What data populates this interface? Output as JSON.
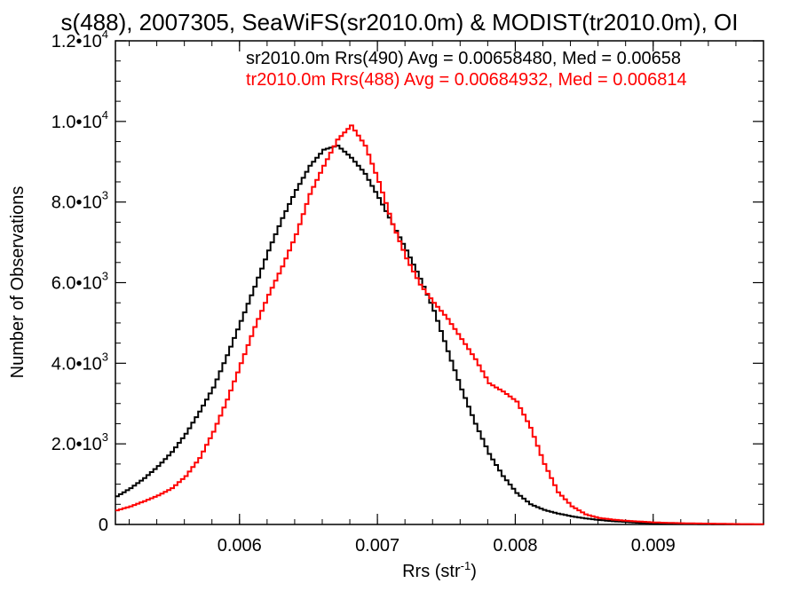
{
  "chart_data": {
    "type": "line",
    "title": "s(488), 2007305, SeaWiFS(sr2010.0m) & MODIST(tr2010.0m), OI",
    "xlabel": "Rrs (str",
    "xlabel_sup": "-1",
    "xlabel_close": ")",
    "ylabel": "Number of Observations",
    "xlim": [
      0.0051,
      0.0098
    ],
    "ylim": [
      0,
      12000
    ],
    "x_ticks": [
      {
        "value": 0.006,
        "label": "0.006"
      },
      {
        "value": 0.007,
        "label": "0.007"
      },
      {
        "value": 0.008,
        "label": "0.008"
      },
      {
        "value": 0.009,
        "label": "0.009"
      }
    ],
    "y_ticks": [
      {
        "value": 0,
        "mant": "0",
        "exp": ""
      },
      {
        "value": 2000,
        "mant": "2.0•10",
        "exp": "3"
      },
      {
        "value": 4000,
        "mant": "4.0•10",
        "exp": "3"
      },
      {
        "value": 6000,
        "mant": "6.0•10",
        "exp": "3"
      },
      {
        "value": 8000,
        "mant": "8.0•10",
        "exp": "3"
      },
      {
        "value": 10000,
        "mant": "1.0•10",
        "exp": "4"
      },
      {
        "value": 12000,
        "mant": "1.2•10",
        "exp": "4"
      }
    ],
    "legend_placement": "top-right",
    "series": [
      {
        "name": "sr2010.0m Rrs(490) Avg = 0.00658480, Med = 0.00658",
        "color": "#000000",
        "x": [
          0.0051,
          0.0052,
          0.0053,
          0.0054,
          0.0055,
          0.0056,
          0.0057,
          0.0058,
          0.0059,
          0.006,
          0.0061,
          0.0062,
          0.0063,
          0.0064,
          0.0065,
          0.0066,
          0.0067,
          0.0068,
          0.0069,
          0.007,
          0.0071,
          0.0072,
          0.0073,
          0.0074,
          0.0075,
          0.0076,
          0.0077,
          0.0078,
          0.0079,
          0.008,
          0.0081,
          0.0082,
          0.0083,
          0.0084,
          0.0085,
          0.0086,
          0.0087,
          0.0088,
          0.0089,
          0.009,
          0.0091,
          0.0092,
          0.0093,
          0.0094,
          0.0095,
          0.0096,
          0.0097,
          0.0098
        ],
        "y": [
          700,
          900,
          1150,
          1450,
          1800,
          2250,
          2800,
          3400,
          4200,
          5050,
          5900,
          6800,
          7600,
          8300,
          8900,
          9300,
          9400,
          9100,
          8700,
          8100,
          7450,
          6800,
          6100,
          5300,
          4300,
          3350,
          2500,
          1750,
          1200,
          780,
          500,
          360,
          270,
          200,
          150,
          110,
          80,
          60,
          40,
          30,
          20,
          15,
          10,
          8,
          5,
          3,
          2,
          1
        ]
      },
      {
        "name": "tr2010.0m Rrs(488) Avg = 0.00684932, Med = 0.006814",
        "color": "#ff0000",
        "x": [
          0.0051,
          0.0052,
          0.0053,
          0.0054,
          0.0055,
          0.0056,
          0.0057,
          0.0058,
          0.0059,
          0.006,
          0.0061,
          0.0062,
          0.0063,
          0.0064,
          0.0065,
          0.0066,
          0.0067,
          0.0068,
          0.0069,
          0.007,
          0.0071,
          0.0072,
          0.0073,
          0.0074,
          0.0075,
          0.0076,
          0.0077,
          0.0078,
          0.0079,
          0.008,
          0.0081,
          0.0082,
          0.0083,
          0.0084,
          0.0085,
          0.0086,
          0.0087,
          0.0088,
          0.0089,
          0.009,
          0.0091,
          0.0092,
          0.0093,
          0.0094,
          0.0095,
          0.0096,
          0.0097,
          0.0098
        ],
        "y": [
          350,
          450,
          580,
          720,
          900,
          1200,
          1650,
          2300,
          3100,
          4000,
          4900,
          5700,
          6400,
          7200,
          8200,
          8900,
          9550,
          9900,
          9400,
          8500,
          7450,
          6600,
          5950,
          5500,
          5100,
          4600,
          4100,
          3500,
          3300,
          3050,
          2400,
          1500,
          800,
          450,
          250,
          160,
          120,
          90,
          70,
          50,
          40,
          30,
          25,
          20,
          15,
          10,
          8,
          5
        ]
      }
    ]
  }
}
